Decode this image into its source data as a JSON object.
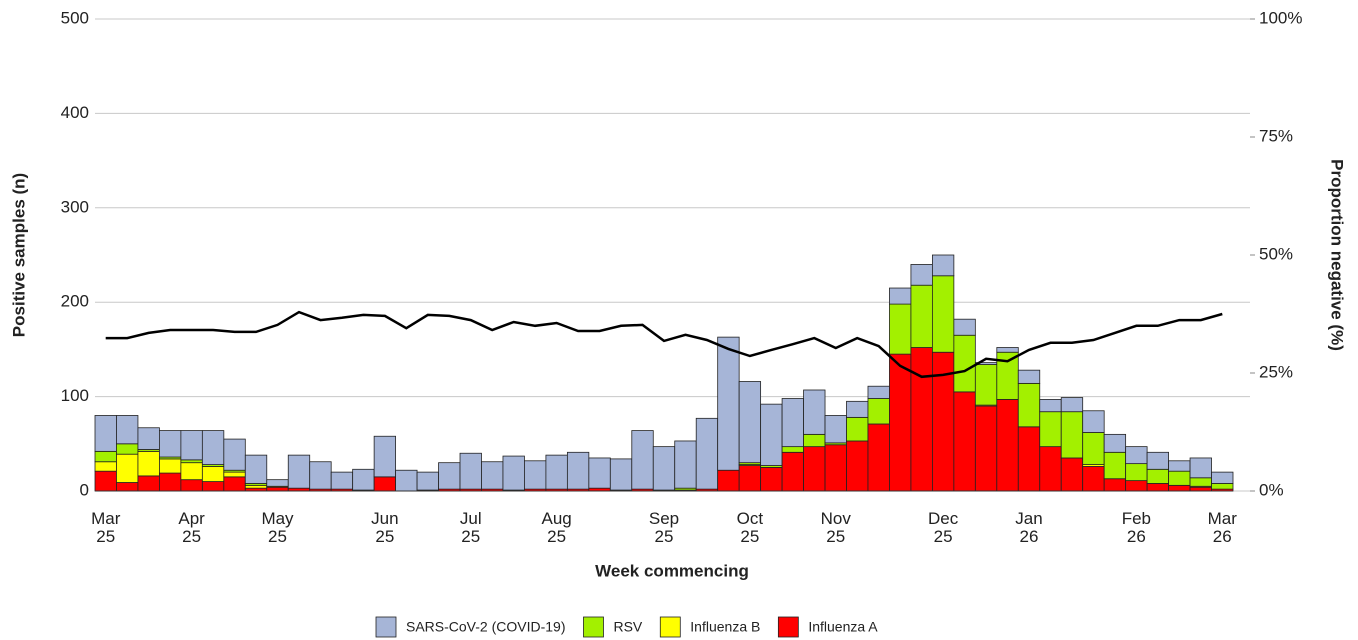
{
  "chart_data": {
    "type": "bar",
    "stacked": true,
    "x_label": "Week commencing",
    "y_label": "Positive samples (n)",
    "y2_label": "Proportion negative (%)",
    "categories": [
      "Mar 25",
      null,
      null,
      null,
      "Apr 25",
      null,
      null,
      null,
      "May 25",
      null,
      null,
      null,
      null,
      "Jun 25",
      null,
      null,
      null,
      "Jul 25",
      null,
      null,
      null,
      "Aug 25",
      null,
      null,
      null,
      null,
      "Sep 25",
      null,
      null,
      null,
      "Oct 25",
      null,
      null,
      null,
      "Nov 25",
      null,
      null,
      null,
      null,
      "Dec 25",
      null,
      null,
      null,
      "Jan 26",
      null,
      null,
      null,
      null,
      "Feb 26",
      null,
      null,
      null,
      "Mar 26"
    ],
    "series": [
      {
        "name": "Influenza A",
        "color": "#ff0000",
        "values": [
          21,
          9,
          16,
          19,
          12,
          10,
          15,
          3,
          4,
          3,
          2,
          2,
          1,
          15,
          0,
          1,
          2,
          2,
          2,
          1,
          2,
          2,
          2,
          3,
          1,
          2,
          0,
          1,
          2,
          22,
          27,
          25,
          41,
          47,
          49,
          53,
          71,
          145,
          152,
          147,
          105,
          90,
          97,
          68,
          47,
          35,
          26,
          13,
          11,
          8,
          6,
          4,
          2
        ]
      },
      {
        "name": "Influenza B",
        "color": "#ffff00",
        "values": [
          10,
          30,
          26,
          15,
          18,
          16,
          5,
          3,
          1,
          0,
          0,
          0,
          0,
          0,
          0,
          0,
          0,
          0,
          0,
          0,
          0,
          0,
          0,
          0,
          0,
          0,
          0,
          0,
          0,
          0,
          1,
          0,
          0,
          0,
          0,
          0,
          0,
          0,
          0,
          0,
          0,
          1,
          0,
          0,
          0,
          0,
          2,
          0,
          0,
          0,
          0,
          1,
          0
        ]
      },
      {
        "name": "RSV",
        "color": "#a3f000",
        "values": [
          11,
          11,
          2,
          2,
          3,
          2,
          2,
          2,
          0,
          0,
          0,
          0,
          0,
          0,
          0,
          0,
          0,
          0,
          0,
          0,
          0,
          0,
          0,
          0,
          0,
          0,
          1,
          2,
          0,
          0,
          2,
          2,
          6,
          13,
          2,
          25,
          27,
          53,
          66,
          81,
          60,
          43,
          50,
          46,
          37,
          49,
          34,
          28,
          18,
          15,
          15,
          9,
          6
        ]
      },
      {
        "name": "SARS-CoV-2 (COVID-19)",
        "color": "#a6b5d7",
        "values": [
          38,
          30,
          23,
          28,
          31,
          36,
          33,
          30,
          7,
          35,
          29,
          18,
          22,
          43,
          22,
          19,
          28,
          38,
          29,
          36,
          30,
          36,
          39,
          32,
          33,
          62,
          46,
          50,
          75,
          141,
          86,
          65,
          51,
          47,
          29,
          17,
          13,
          17,
          22,
          22,
          17,
          2,
          5,
          14,
          13,
          15,
          23,
          19,
          18,
          18,
          11,
          21,
          12
        ]
      }
    ],
    "line": {
      "color": "#000000",
      "axis": "y2",
      "values": [
        32.4,
        32.4,
        33.5,
        34.1,
        34.1,
        34.1,
        33.7,
        33.7,
        35.2,
        37.9,
        36.2,
        36.7,
        37.3,
        37.1,
        34.5,
        37.3,
        37.1,
        36.2,
        34.1,
        35.8,
        35.0,
        35.6,
        33.9,
        33.9,
        35.0,
        35.2,
        31.8,
        33.1,
        32.0,
        30.1,
        28.6,
        29.9,
        31.1,
        32.4,
        30.3,
        32.4,
        30.7,
        26.5,
        24.2,
        24.6,
        25.4,
        28.0,
        27.5,
        29.9,
        31.4,
        31.4,
        32.0,
        33.5,
        35.0,
        35.0,
        36.2,
        36.2,
        37.5
      ]
    },
    "ylim": [
      0,
      500
    ],
    "yticks": [
      0,
      100,
      200,
      300,
      400,
      500
    ],
    "y2lim": [
      0,
      100
    ],
    "y2ticks": [
      {
        "value": 0,
        "label": "0%"
      },
      {
        "value": 25,
        "label": "25%"
      },
      {
        "value": 50,
        "label": "50%"
      },
      {
        "value": 75,
        "label": "75%"
      },
      {
        "value": 100,
        "label": "100%"
      }
    ],
    "grid": true,
    "legend": "bottom"
  }
}
